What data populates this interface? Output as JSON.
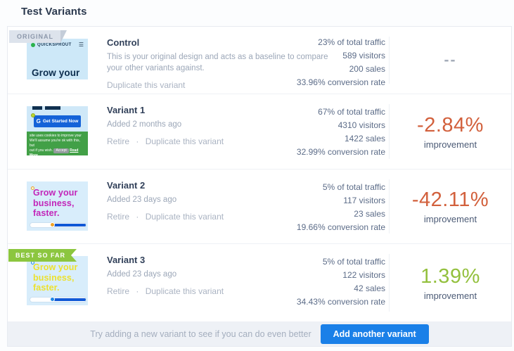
{
  "page_title": "Test Variants",
  "link_separator": "·",
  "colors": {
    "improvement_negative": "#d2603c",
    "improvement_positive": "#93c03d",
    "best_badge_green": "#8cc63f",
    "original_badge_gray": "#dde3ec",
    "button_blue": "#1a80e8",
    "footer_background": "#eef1f6"
  },
  "rows": [
    {
      "badge": "ORIGINAL",
      "name": "Control",
      "description": "This is your original design and acts as a baseline to compare your other variants against.",
      "links": [
        "Duplicate this variant"
      ],
      "stats": {
        "traffic": "23% of total traffic",
        "visitors": "589 visitors",
        "sales": "200 sales",
        "conversion": "33.96% conversion rate"
      },
      "improvement": {
        "value": "--",
        "label": ""
      },
      "thumbnail": {
        "logo": "QUICKSPROUT",
        "menu_icon": "☰",
        "headline": "Grow your"
      }
    },
    {
      "name": "Variant 1",
      "subtitle": "Added 2 months ago",
      "links": [
        "Retire",
        "Duplicate this variant"
      ],
      "stats": {
        "traffic": "67% of total traffic",
        "visitors": "4310 visitors",
        "sales": "1422 sales",
        "conversion": "32.99% conversion rate"
      },
      "improvement": {
        "value": "-2.84%",
        "label": "improvement",
        "state": "negative"
      },
      "thumbnail": {
        "g_mark": "G",
        "cta_button": "Get Started Now",
        "cookie_line1": "site uses cookies to improve your",
        "cookie_line2": "We'll assume you're ok with this, but",
        "cookie_line3": "out if you wish.",
        "accept_button": "Accept",
        "read_more": "Read More"
      }
    },
    {
      "name": "Variant 2",
      "subtitle": "Added 23 days ago",
      "links": [
        "Retire",
        "Duplicate this variant"
      ],
      "stats": {
        "traffic": "5% of total traffic",
        "visitors": "117 visitors",
        "sales": "23 sales",
        "conversion": "19.66% conversion rate"
      },
      "improvement": {
        "value": "-42.11%",
        "label": "improvement",
        "state": "negative"
      },
      "thumbnail": {
        "headline": "Grow your business, faster."
      }
    },
    {
      "badge": "BEST SO FAR",
      "name": "Variant 3",
      "subtitle": "Added 23 days ago",
      "links": [
        "Retire",
        "Duplicate this variant"
      ],
      "stats": {
        "traffic": "5% of total traffic",
        "visitors": "122 visitors",
        "sales": "42 sales",
        "conversion": "34.43% conversion rate"
      },
      "improvement": {
        "value": "1.39%",
        "label": "improvement",
        "state": "positive"
      },
      "thumbnail": {
        "headline": "Grow your business, faster."
      }
    }
  ],
  "footer": {
    "prompt": "Try adding a new variant to see if you can do even better",
    "button": "Add another variant"
  }
}
